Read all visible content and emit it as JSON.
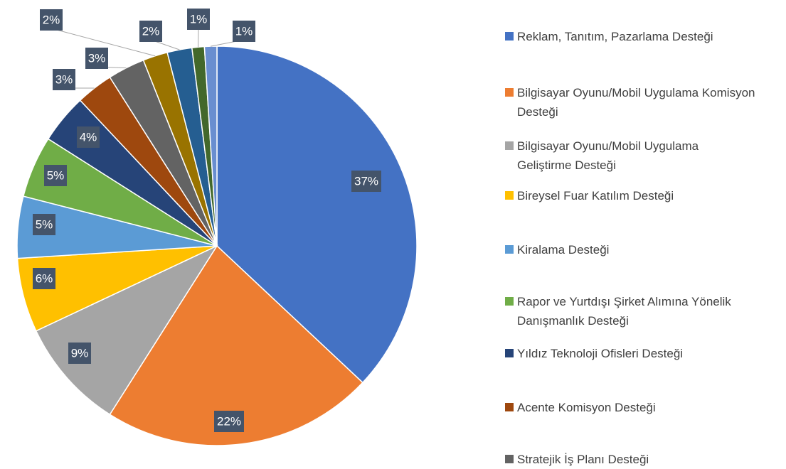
{
  "chart_data": {
    "type": "pie",
    "categories": [
      "Reklam, Tanıtım, Pazarlama Desteği",
      "Bilgisayar Oyunu/Mobil Uygulama Komisyon Desteği",
      "Bilgisayar Oyunu/Mobil Uygulama Geliştirme Desteği",
      "Bireysel Fuar Katılım Desteği",
      "Kiralama Desteği",
      "Rapor ve Yurtdışı Şirket Alımına Yönelik Danışmanlık Desteği",
      "Yıldız Teknoloji Ofisleri Desteği",
      "Acente Komisyon Desteği",
      "Stratejik İş Planı Desteği",
      null,
      null,
      null,
      null
    ],
    "values": [
      37,
      22,
      9,
      6,
      5,
      5,
      4,
      3,
      3,
      2,
      2,
      1,
      1
    ],
    "value_labels": [
      "37%",
      "22%",
      "9%",
      "6%",
      "5%",
      "5%",
      "4%",
      "3%",
      "3%",
      "2%",
      "2%",
      "1%",
      "1%"
    ],
    "colors": [
      "#4472c4",
      "#ed7d31",
      "#a5a5a5",
      "#ffc000",
      "#5b9bd5",
      "#70ad47",
      "#264478",
      "#9e480e",
      "#636363",
      "#997300",
      "#255e91",
      "#43682b",
      "#698ed0"
    ]
  }
}
